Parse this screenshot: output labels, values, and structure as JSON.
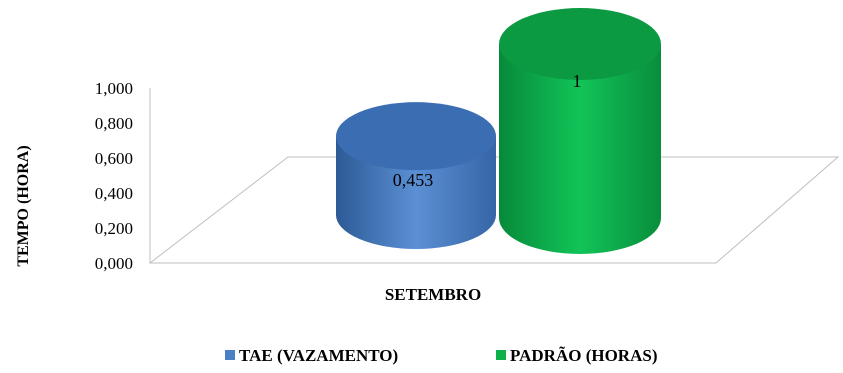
{
  "chart_data": {
    "type": "bar",
    "style": "3d-cylinder",
    "categories": [
      "SETEMBRO"
    ],
    "series": [
      {
        "name": "TAE (VAZAMENTO)",
        "values": [
          0.453
        ],
        "label": "0,453",
        "color": "#4a7fc4"
      },
      {
        "name": "PADRÃO (HORAS)",
        "values": [
          1
        ],
        "label": "1",
        "color": "#0eb04a"
      }
    ],
    "ylabel": "TEMPO (HORA)",
    "xlabel": "",
    "ylim": [
      0,
      1
    ],
    "yticks": [
      {
        "value": 0,
        "label": "0,000"
      },
      {
        "value": 0.2,
        "label": "0,200"
      },
      {
        "value": 0.4,
        "label": "0,400"
      },
      {
        "value": 0.6,
        "label": "0,600"
      },
      {
        "value": 0.8,
        "label": "0,800"
      },
      {
        "value": 1.0,
        "label": "1,000"
      }
    ],
    "grid": false,
    "legend_position": "bottom"
  }
}
